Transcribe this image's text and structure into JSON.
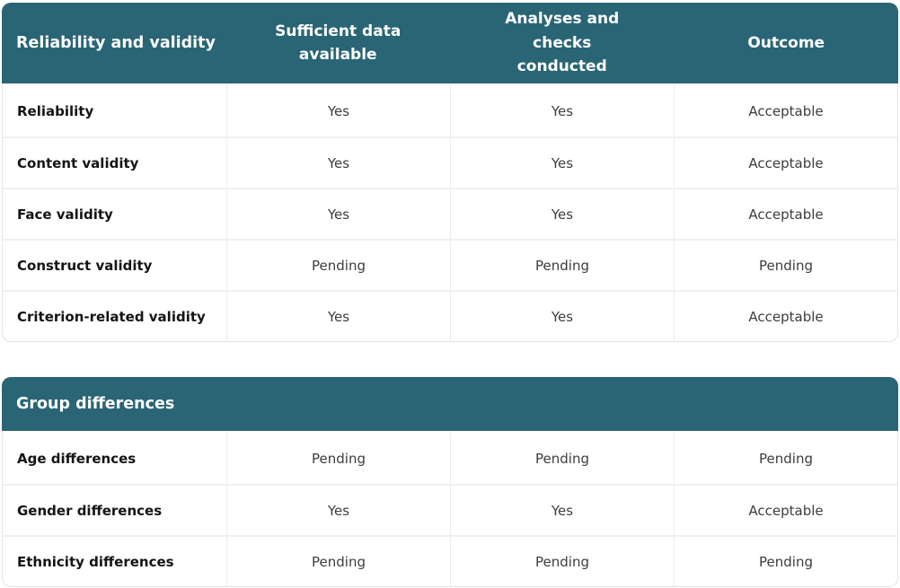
{
  "theme": {
    "header_bg": "#2A6575",
    "header_text": "#FDFEFE",
    "row_bg": "#FFFFFF",
    "row_border": "#ECECEC",
    "label_text": "#141414",
    "value_text": "#3D3D3D"
  },
  "tables": [
    {
      "title": "Reliability and validity",
      "columns": [
        "Sufficient data available",
        "Analyses and checks conducted",
        "Outcome"
      ],
      "rows": [
        {
          "label": "Reliability",
          "values": [
            "Yes",
            "Yes",
            "Acceptable"
          ]
        },
        {
          "label": "Content validity",
          "values": [
            "Yes",
            "Yes",
            "Acceptable"
          ]
        },
        {
          "label": "Face validity",
          "values": [
            "Yes",
            "Yes",
            "Acceptable"
          ]
        },
        {
          "label": "Construct validity",
          "values": [
            "Pending",
            "Pending",
            "Pending"
          ]
        },
        {
          "label": "Criterion-related validity",
          "values": [
            "Yes",
            "Yes",
            "Acceptable"
          ]
        }
      ]
    },
    {
      "title": "Group differences",
      "columns": [],
      "rows": [
        {
          "label": "Age differences",
          "values": [
            "Pending",
            "Pending",
            "Pending"
          ]
        },
        {
          "label": "Gender differences",
          "values": [
            "Yes",
            "Yes",
            "Acceptable"
          ]
        },
        {
          "label": "Ethnicity differences",
          "values": [
            "Pending",
            "Pending",
            "Pending"
          ]
        }
      ]
    }
  ]
}
